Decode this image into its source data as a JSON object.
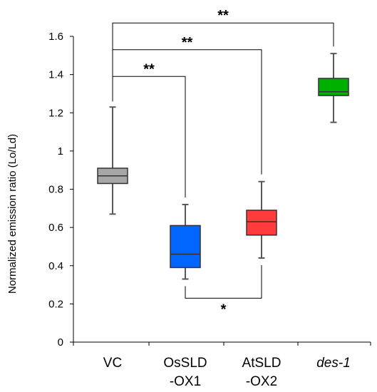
{
  "chart_data": {
    "type": "box",
    "title": "",
    "xlabel": "",
    "ylabel": "Normalized emission ratio (Lo/Ld)",
    "ylim": [
      0,
      1.6
    ],
    "yticks": [
      0,
      0.2,
      0.4,
      0.6,
      0.8,
      1,
      1.2,
      1.4,
      1.6
    ],
    "ytick_labels": [
      "0",
      "0.2",
      "0.4",
      "0.6",
      "0.8",
      "1",
      "1.2",
      "1.4",
      "1.6"
    ],
    "grid": false,
    "legend": "none",
    "categories": [
      {
        "lines": [
          "VC"
        ],
        "italic": false
      },
      {
        "lines": [
          "OsSLD",
          "-OX1"
        ],
        "italic": false
      },
      {
        "lines": [
          "AtSLD",
          "-OX2"
        ],
        "italic": false
      },
      {
        "lines": [
          "des-1"
        ],
        "italic": true
      }
    ],
    "boxes": [
      {
        "min": 0.67,
        "q1": 0.83,
        "median": 0.87,
        "q3": 0.91,
        "max": 1.23,
        "color": "#a6a6a6"
      },
      {
        "min": 0.33,
        "q1": 0.39,
        "median": 0.46,
        "q3": 0.61,
        "max": 0.72,
        "color": "#0066ff"
      },
      {
        "min": 0.44,
        "q1": 0.56,
        "median": 0.63,
        "q3": 0.69,
        "max": 0.84,
        "color": "#ff3b3b"
      },
      {
        "min": 1.15,
        "q1": 1.29,
        "median": 1.31,
        "q3": 1.38,
        "max": 1.51,
        "color": "#00b000"
      }
    ],
    "significance": [
      {
        "from": 0,
        "to": 1,
        "label": "**",
        "y": 1.39,
        "position": "above"
      },
      {
        "from": 0,
        "to": 2,
        "label": "**",
        "y": 1.53,
        "position": "above"
      },
      {
        "from": 0,
        "to": 3,
        "label": "**",
        "y": 1.67,
        "position": "above"
      },
      {
        "from": 1,
        "to": 2,
        "label": "*",
        "y": 0.23,
        "position": "below"
      }
    ]
  }
}
